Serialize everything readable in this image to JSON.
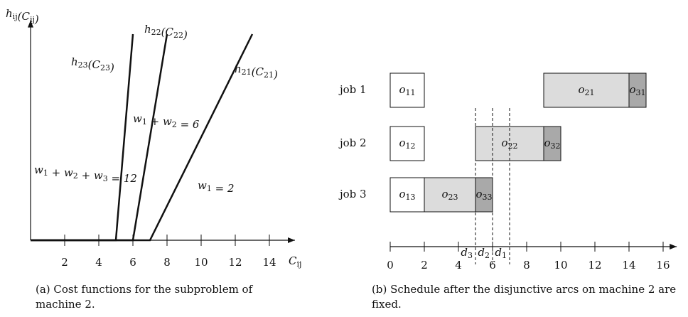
{
  "panel_a": {
    "y_label": [
      [
        "h",
        "ij"
      ],
      [
        "(C",
        "ij"
      ],
      [
        ")"
      ]
    ],
    "x_label": [
      [
        "C",
        "ij"
      ]
    ],
    "xlim": [
      0,
      15.5
    ],
    "ylim": [
      0,
      12.8
    ],
    "xticks": [
      2,
      4,
      6,
      8,
      10,
      12,
      14
    ],
    "series": [
      {
        "name": [
          [
            "h",
            "23"
          ],
          [
            "(C",
            "23"
          ],
          [
            ")"
          ]
        ],
        "x": [
          0,
          5,
          6
        ],
        "y": [
          0,
          0,
          12
        ]
      },
      {
        "name": [
          [
            "h",
            "22"
          ],
          [
            "(C",
            "22"
          ],
          [
            ")"
          ]
        ],
        "x": [
          0,
          6,
          8
        ],
        "y": [
          0,
          0,
          12
        ]
      },
      {
        "name": [
          [
            "h",
            "21"
          ],
          [
            "(C",
            "21"
          ],
          [
            ")"
          ]
        ],
        "x": [
          0,
          7,
          13
        ],
        "y": [
          0,
          0,
          12
        ]
      }
    ],
    "annotations": [
      [
        [
          "w",
          "1"
        ],
        [
          " + w",
          "2"
        ],
        [
          " + w",
          "3"
        ],
        [
          " = 12"
        ]
      ],
      [
        [
          "w",
          "1"
        ],
        [
          " + w",
          "2"
        ],
        [
          " = 6"
        ]
      ],
      [
        [
          "w",
          "1"
        ],
        [
          " = 2"
        ]
      ]
    ],
    "caption": "(a) Cost functions for the subproblem of machine 2."
  },
  "panel_b": {
    "xlim": [
      0,
      16.8
    ],
    "xticks": [
      0,
      2,
      4,
      6,
      8,
      10,
      12,
      14,
      16
    ],
    "jobs": [
      {
        "label": "job 1",
        "ops": [
          {
            "name": [
              [
                "o",
                "11"
              ]
            ],
            "start": 0,
            "end": 2,
            "color": "#ffffff"
          },
          {
            "name": [
              [
                "o",
                "21"
              ]
            ],
            "start": 9,
            "end": 14,
            "color": "#dcdcdc"
          },
          {
            "name": [
              [
                "o",
                "31"
              ]
            ],
            "start": 14,
            "end": 15,
            "color": "#a9a9a9"
          }
        ]
      },
      {
        "label": "job 2",
        "ops": [
          {
            "name": [
              [
                "o",
                "12"
              ]
            ],
            "start": 0,
            "end": 2,
            "color": "#ffffff"
          },
          {
            "name": [
              [
                "o",
                "22"
              ]
            ],
            "start": 5,
            "end": 9,
            "color": "#dcdcdc"
          },
          {
            "name": [
              [
                "o",
                "32"
              ]
            ],
            "start": 9,
            "end": 10,
            "color": "#a9a9a9"
          }
        ]
      },
      {
        "label": "job 3",
        "ops": [
          {
            "name": [
              [
                "o",
                "13"
              ]
            ],
            "start": 0,
            "end": 2,
            "color": "#ffffff"
          },
          {
            "name": [
              [
                "o",
                "23"
              ]
            ],
            "start": 2,
            "end": 5,
            "color": "#dcdcdc"
          },
          {
            "name": [
              [
                "o",
                "33"
              ]
            ],
            "start": 5,
            "end": 6,
            "color": "#a9a9a9"
          }
        ]
      }
    ],
    "due_dates": [
      {
        "label": [
          [
            "d",
            "3"
          ]
        ],
        "value": 5
      },
      {
        "label": [
          [
            "d",
            "2"
          ]
        ],
        "value": 6
      },
      {
        "label": [
          [
            "d",
            "1"
          ]
        ],
        "value": 7
      }
    ],
    "caption": "(b) Schedule after the disjunctive arcs on machine 2 are fixed."
  }
}
